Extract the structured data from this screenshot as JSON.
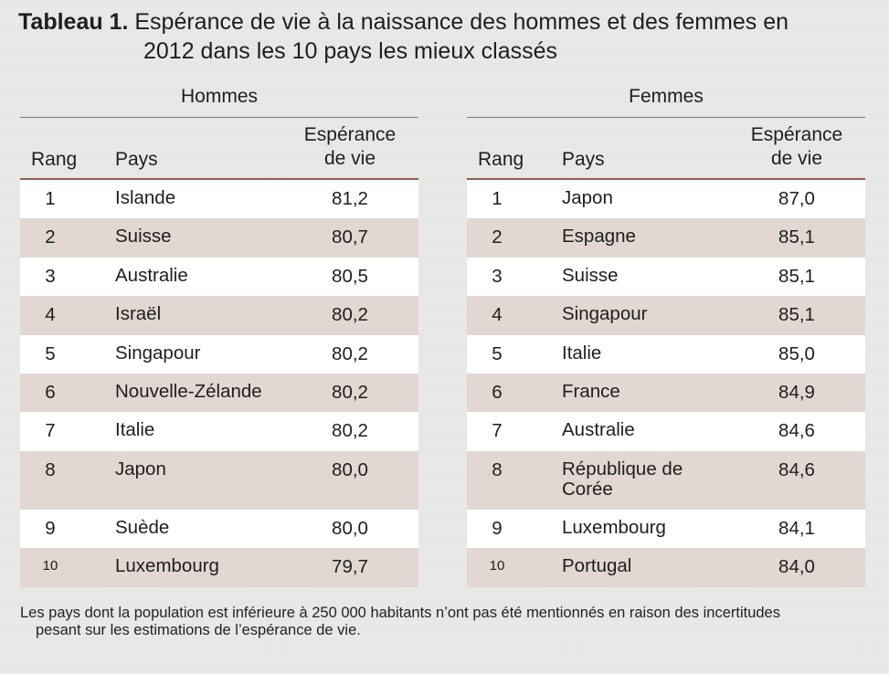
{
  "title": {
    "lead": "Tableau 1.",
    "line1": "Espérance de vie à la naissance des hommes et des femmes en",
    "line2": "2012 dans les 10 pays les mieux classés"
  },
  "columns": {
    "rang": "Rang",
    "pays": "Pays",
    "esperance_1": "Espérance",
    "esperance_2": "de vie"
  },
  "hommes": {
    "title": "Hommes",
    "rows": [
      {
        "rang": "1",
        "pays": "Islande",
        "esp": "81,2"
      },
      {
        "rang": "2",
        "pays": "Suisse",
        "esp": "80,7"
      },
      {
        "rang": "3",
        "pays": "Australie",
        "esp": "80,5"
      },
      {
        "rang": "4",
        "pays": "Israël",
        "esp": "80,2"
      },
      {
        "rang": "5",
        "pays": "Singapour",
        "esp": "80,2"
      },
      {
        "rang": "6",
        "pays": "Nouvelle-Zélande",
        "esp": "80,2"
      },
      {
        "rang": "7",
        "pays": "Italie",
        "esp": "80,2"
      },
      {
        "rang": "8",
        "pays": "Japon",
        "esp": "80,0"
      },
      {
        "rang": "9",
        "pays": "Suède",
        "esp": "80,0"
      },
      {
        "rang": "10",
        "pays": "Luxembourg",
        "esp": "79,7"
      }
    ]
  },
  "femmes": {
    "title": "Femmes",
    "rows": [
      {
        "rang": "1",
        "pays": "Japon",
        "esp": "87,0"
      },
      {
        "rang": "2",
        "pays": "Espagne",
        "esp": "85,1"
      },
      {
        "rang": "3",
        "pays": "Suisse",
        "esp": "85,1"
      },
      {
        "rang": "4",
        "pays": "Singapour",
        "esp": "85,1"
      },
      {
        "rang": "5",
        "pays": "Italie",
        "esp": "85,0"
      },
      {
        "rang": "6",
        "pays": "France",
        "esp": "84,9"
      },
      {
        "rang": "7",
        "pays": "Australie",
        "esp": "84,6"
      },
      {
        "rang": "8",
        "pays_1": "République de",
        "pays_2": "Corée",
        "esp": "84,6"
      },
      {
        "rang": "9",
        "pays": "Luxembourg",
        "esp": "84,1"
      },
      {
        "rang": "10",
        "pays": "Portugal",
        "esp": "84,0"
      }
    ]
  },
  "footnote": {
    "line1": "Les pays dont la population est inférieure à 250 000 habitants n’ont pas été mentionnés en raison des incertitudes",
    "line2": "pesant sur les estimations de l’espérance de vie."
  }
}
